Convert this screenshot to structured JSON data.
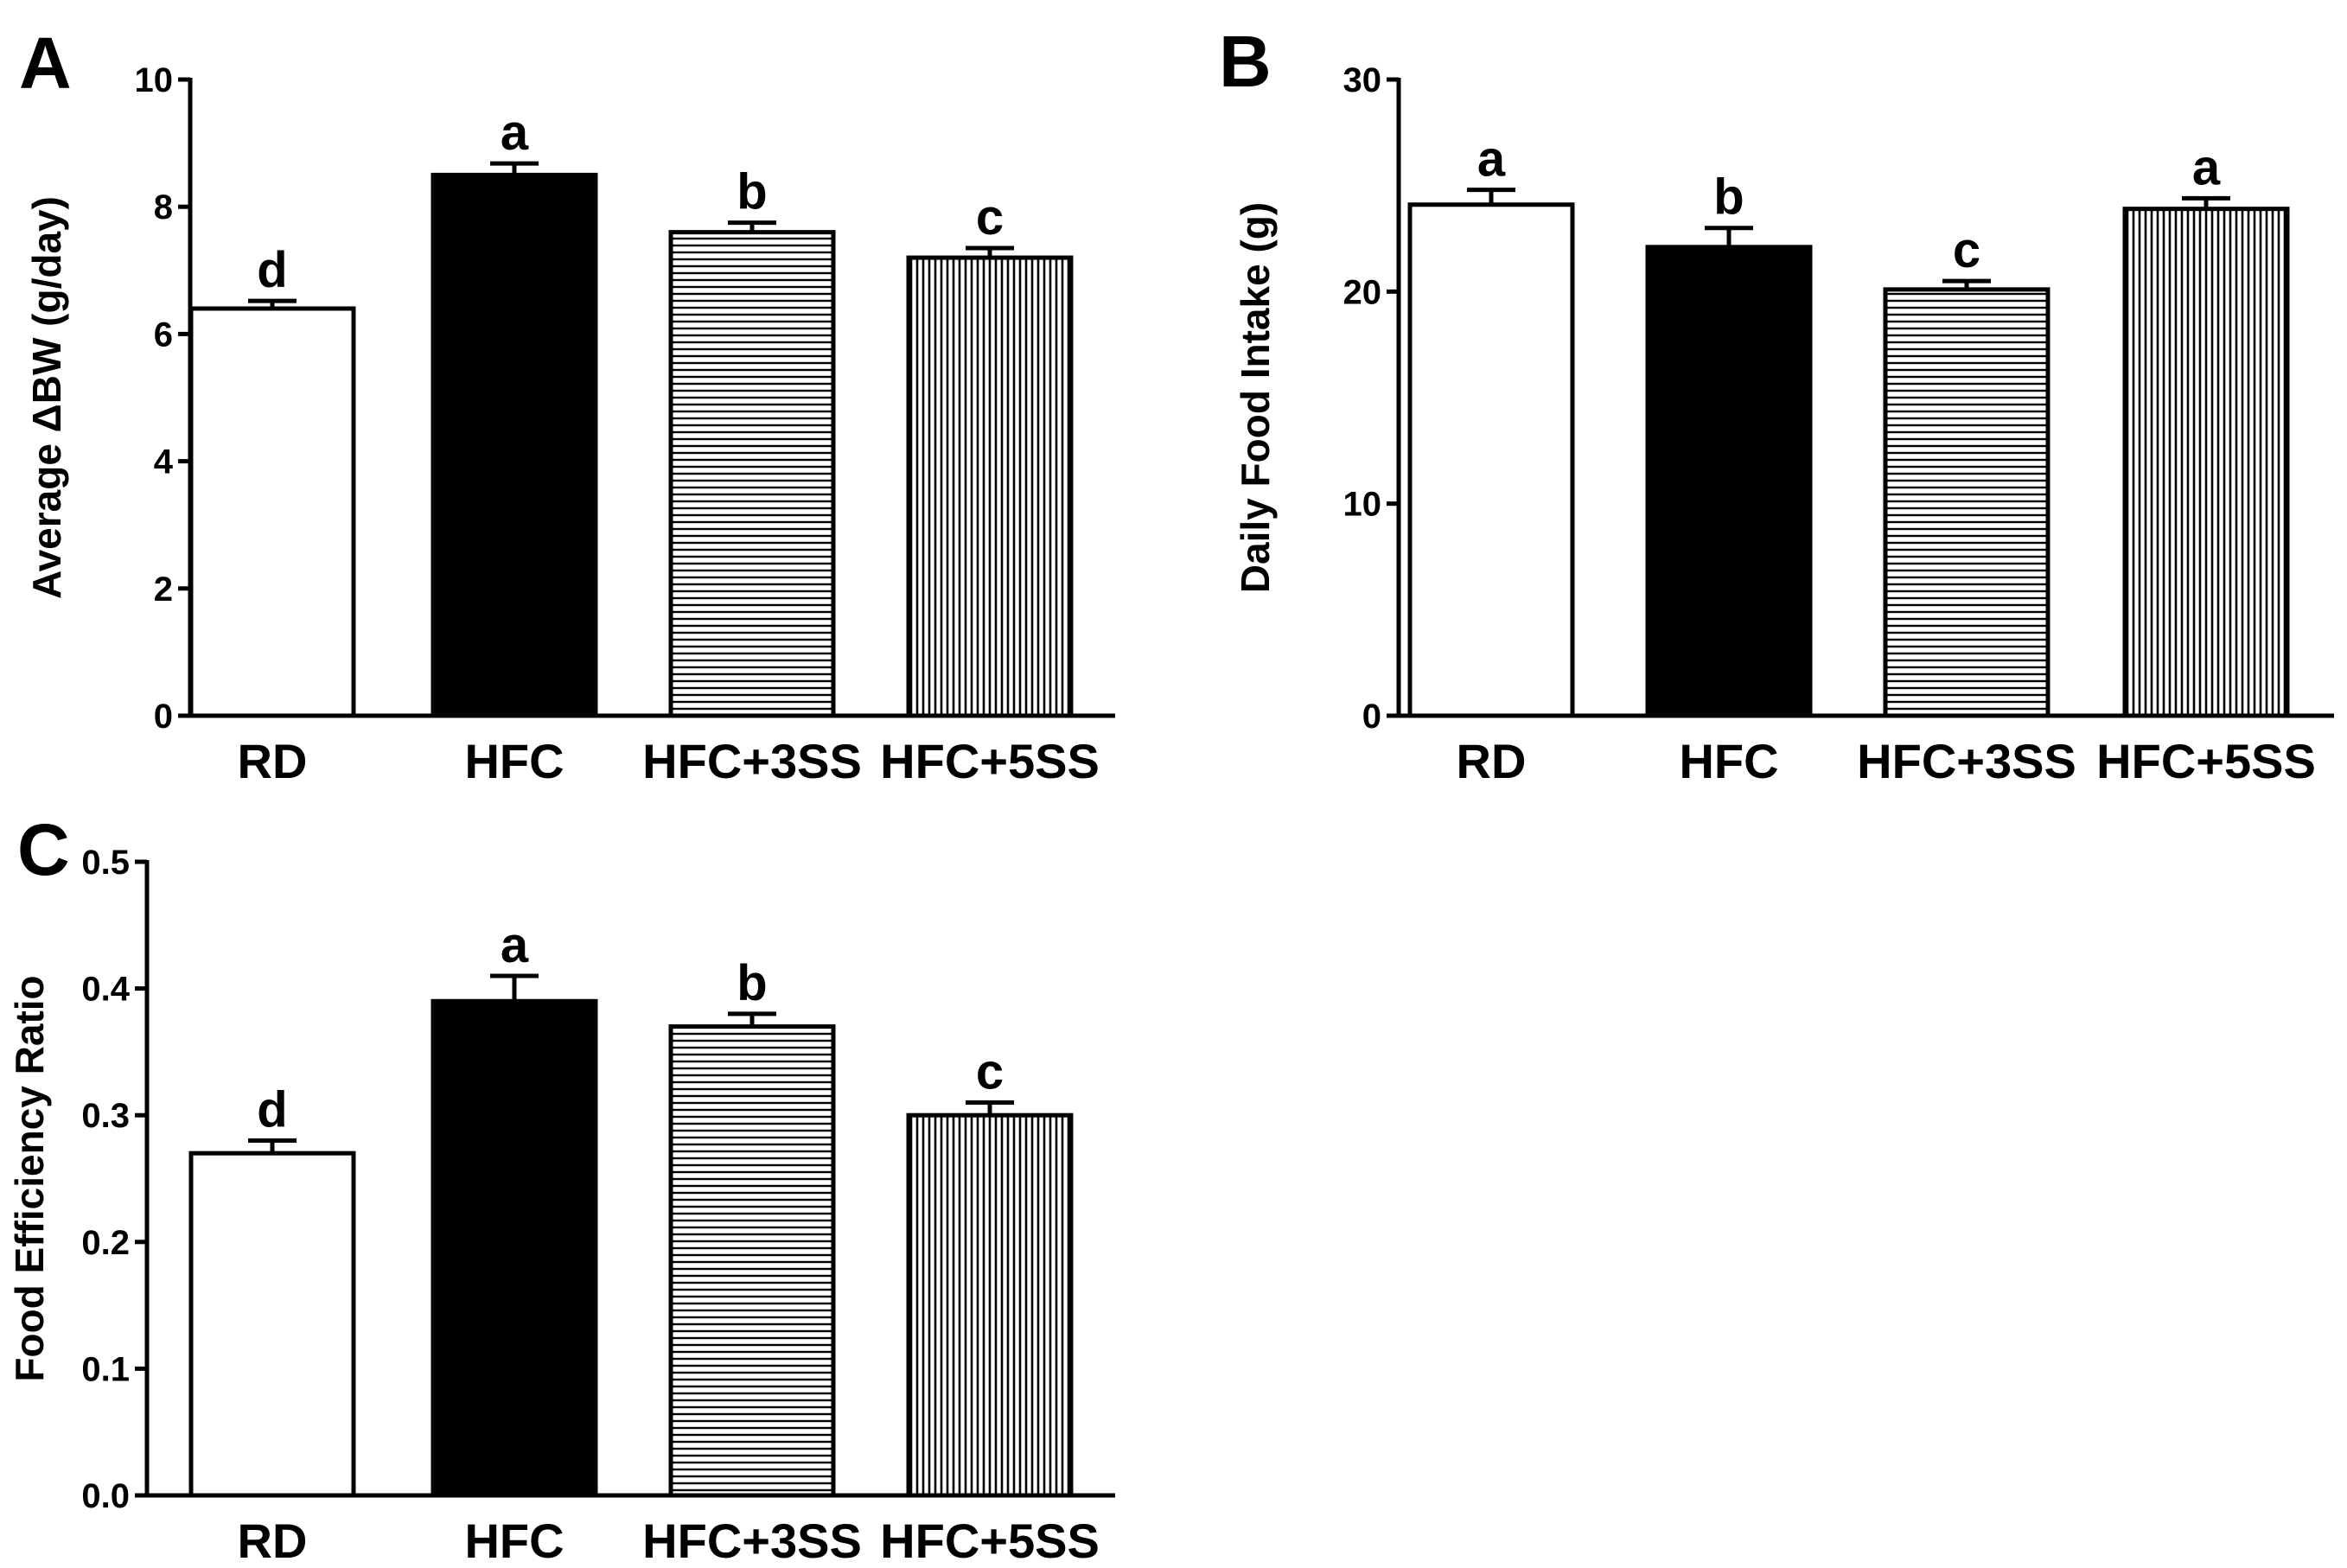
{
  "chart_data": [
    {
      "type": "bar",
      "panel": "A",
      "ylabel": "Average ΔBW (g/day)",
      "xlabel": "",
      "ylim": [
        0,
        10
      ],
      "yticks": [
        0,
        2,
        4,
        6,
        8,
        10
      ],
      "categories": [
        "RD",
        "HFC",
        "HFC+3SS",
        "HFC+5SS"
      ],
      "values": [
        6.4,
        8.5,
        7.6,
        7.2
      ],
      "errors": [
        0.12,
        0.18,
        0.15,
        0.15
      ],
      "significance": [
        "d",
        "a",
        "b",
        "c"
      ],
      "fills": [
        "white",
        "black",
        "horizontal-lines",
        "vertical-lines"
      ]
    },
    {
      "type": "bar",
      "panel": "B",
      "ylabel": "Daily Food Intake (g)",
      "xlabel": "",
      "ylim": [
        0,
        30
      ],
      "yticks": [
        0,
        10,
        20,
        30
      ],
      "categories": [
        "RD",
        "HFC",
        "HFC+3SS",
        "HFC+5SS"
      ],
      "values": [
        24.1,
        22.1,
        20.1,
        23.9
      ],
      "errors": [
        0.7,
        0.9,
        0.4,
        0.5
      ],
      "significance": [
        "a",
        "b",
        "c",
        "a"
      ],
      "fills": [
        "white",
        "black",
        "horizontal-lines",
        "vertical-lines"
      ]
    },
    {
      "type": "bar",
      "panel": "C",
      "ylabel": "Food Efficiency Ratio",
      "xlabel": "",
      "ylim": [
        0,
        0.5
      ],
      "yticks": [
        "0.0",
        "0.1",
        "0.2",
        "0.3",
        "0.4",
        "0.5"
      ],
      "categories": [
        "RD",
        "HFC",
        "HFC+3SS",
        "HFC+5SS"
      ],
      "values": [
        0.27,
        0.39,
        0.37,
        0.3
      ],
      "errors": [
        0.01,
        0.02,
        0.01,
        0.01
      ],
      "significance": [
        "d",
        "a",
        "b",
        "c"
      ],
      "fills": [
        "white",
        "black",
        "horizontal-lines",
        "vertical-lines"
      ]
    }
  ],
  "colors": {
    "bar_stroke": "#000000",
    "bar_dark": "#000000",
    "bar_light": "#ffffff",
    "hatch": "#000000"
  }
}
